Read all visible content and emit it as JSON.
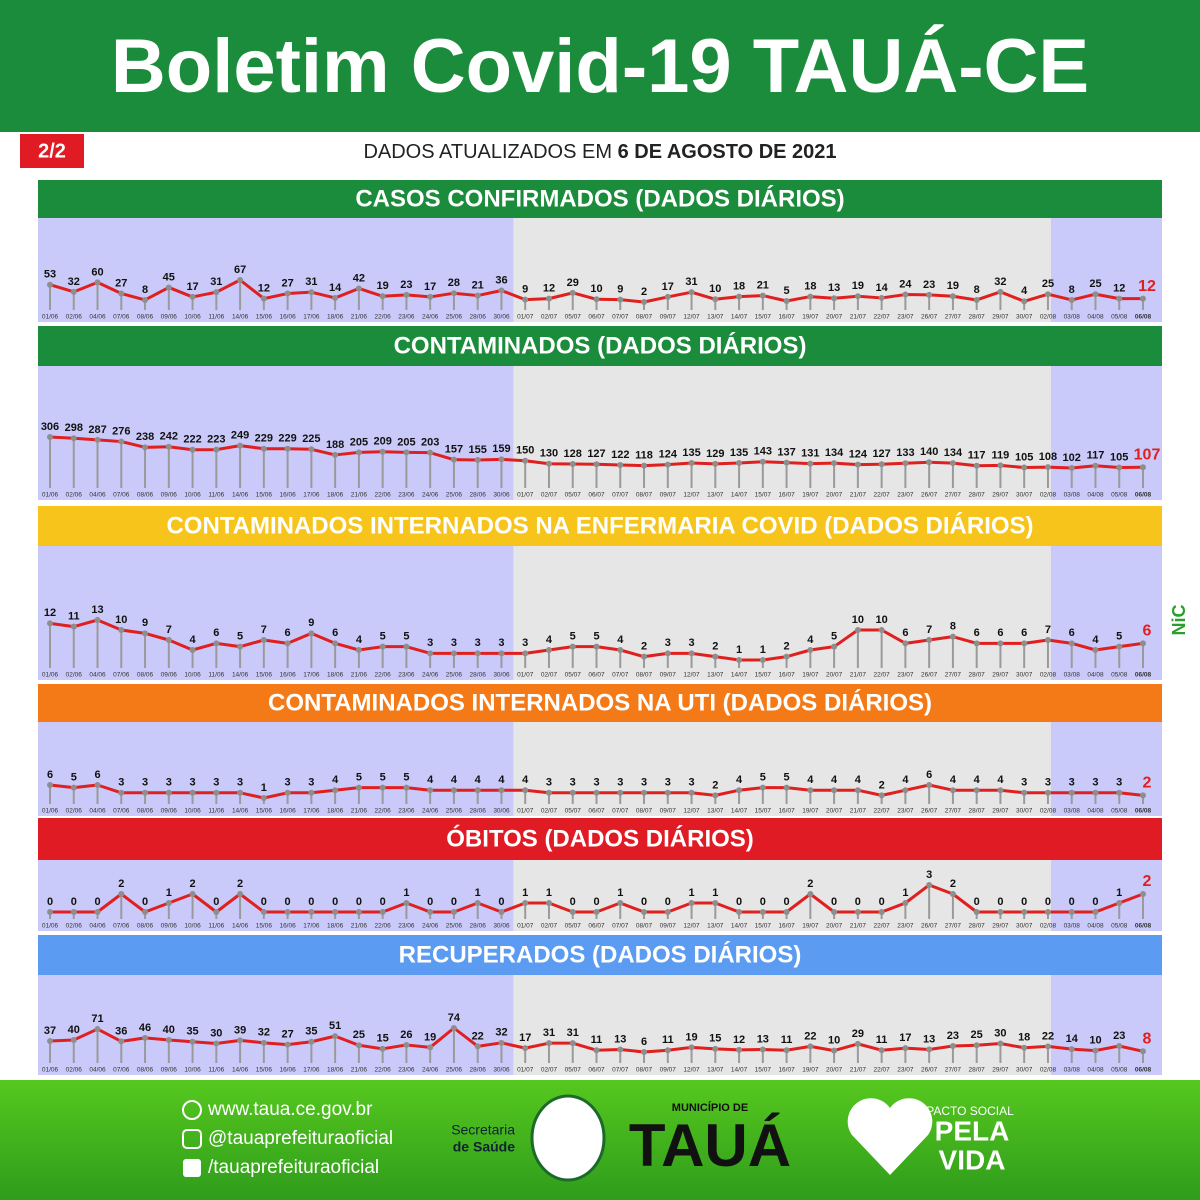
{
  "header": {
    "title": "Boletim Covid-19 TAUÁ-CE",
    "page": "2/2"
  },
  "subtitle": {
    "prefix": "DADOS ATUALIZADOS EM",
    "date": "6 DE AGOSTO DE 2021"
  },
  "chart_data": [
    {
      "type": "line",
      "title": "CASOS CONFIRMADOS (DADOS DIÁRIOS)",
      "header_color": "#1b8c3c",
      "color": "#e0201f",
      "categories": [
        "01/06",
        "02/06",
        "04/06",
        "07/06",
        "08/06",
        "09/06",
        "10/06",
        "11/06",
        "14/06",
        "15/06",
        "16/06",
        "17/06",
        "18/06",
        "21/06",
        "22/06",
        "23/06",
        "24/06",
        "25/06",
        "28/06",
        "30/06",
        "01/07",
        "02/07",
        "05/07",
        "06/07",
        "07/07",
        "08/07",
        "09/07",
        "12/07",
        "13/07",
        "14/07",
        "15/07",
        "16/07",
        "19/07",
        "20/07",
        "21/07",
        "22/07",
        "23/07",
        "26/07",
        "27/07",
        "28/07",
        "29/07",
        "30/07",
        "02/08",
        "03/08",
        "04/08",
        "05/08",
        "06/08"
      ],
      "values": [
        53,
        32,
        60,
        27,
        8,
        45,
        17,
        31,
        67,
        12,
        27,
        31,
        14,
        42,
        19,
        23,
        17,
        28,
        21,
        36,
        9,
        12,
        29,
        10,
        9,
        2,
        17,
        31,
        10,
        18,
        21,
        5,
        18,
        13,
        19,
        14,
        24,
        23,
        19,
        8,
        32,
        4,
        25,
        8,
        25,
        12,
        12
      ]
    },
    {
      "type": "line",
      "title": "CONTAMINADOS (DADOS DIÁRIOS)",
      "header_color": "#1b8c3c",
      "color": "#e0201f",
      "categories": [
        "01/06",
        "02/06",
        "04/06",
        "07/06",
        "08/06",
        "09/06",
        "10/06",
        "11/06",
        "14/06",
        "15/06",
        "16/06",
        "17/06",
        "18/06",
        "21/06",
        "22/06",
        "23/06",
        "24/06",
        "25/06",
        "28/06",
        "30/06",
        "01/07",
        "02/07",
        "05/07",
        "06/07",
        "07/07",
        "08/07",
        "09/07",
        "12/07",
        "13/07",
        "14/07",
        "15/07",
        "16/07",
        "19/07",
        "20/07",
        "21/07",
        "22/07",
        "23/07",
        "26/07",
        "27/07",
        "28/07",
        "29/07",
        "30/07",
        "02/08",
        "03/08",
        "04/08",
        "05/08",
        "06/08"
      ],
      "values": [
        306,
        298,
        287,
        276,
        238,
        242,
        222,
        223,
        249,
        229,
        229,
        225,
        188,
        205,
        209,
        205,
        203,
        157,
        155,
        159,
        150,
        130,
        128,
        127,
        122,
        118,
        124,
        135,
        129,
        135,
        143,
        137,
        131,
        134,
        124,
        127,
        133,
        140,
        134,
        117,
        119,
        105,
        108,
        102,
        117,
        105,
        107
      ]
    },
    {
      "type": "line",
      "title": "CONTAMINADOS INTERNADOS NA ENFERMARIA COVID (DADOS DIÁRIOS)",
      "header_color": "#f7c41c",
      "color": "#e0201f",
      "categories": [
        "01/06",
        "02/06",
        "04/06",
        "07/06",
        "08/06",
        "09/06",
        "10/06",
        "11/06",
        "14/06",
        "15/06",
        "16/06",
        "17/06",
        "18/06",
        "21/06",
        "22/06",
        "23/06",
        "24/06",
        "25/06",
        "28/06",
        "30/06",
        "01/07",
        "02/07",
        "05/07",
        "06/07",
        "07/07",
        "08/07",
        "09/07",
        "12/07",
        "13/07",
        "14/07",
        "15/07",
        "16/07",
        "19/07",
        "20/07",
        "21/07",
        "22/07",
        "23/07",
        "26/07",
        "27/07",
        "28/07",
        "29/07",
        "30/07",
        "02/08",
        "03/08",
        "04/08",
        "05/08",
        "06/08"
      ],
      "values": [
        12,
        11,
        13,
        10,
        9,
        7,
        4,
        6,
        5,
        7,
        6,
        9,
        6,
        4,
        5,
        5,
        3,
        3,
        3,
        3,
        3,
        4,
        5,
        5,
        4,
        2,
        3,
        3,
        2,
        1,
        1,
        2,
        4,
        5,
        10,
        10,
        6,
        7,
        8,
        6,
        6,
        6,
        7,
        6,
        4,
        5,
        6
      ]
    },
    {
      "type": "line",
      "title": "CONTAMINADOS INTERNADOS NA UTI (DADOS DIÁRIOS)",
      "header_color": "#f47a18",
      "color": "#e0201f",
      "categories": [
        "01/06",
        "02/06",
        "04/06",
        "07/06",
        "08/06",
        "09/06",
        "10/06",
        "11/06",
        "14/06",
        "15/06",
        "16/06",
        "17/06",
        "18/06",
        "21/06",
        "22/06",
        "23/06",
        "24/06",
        "25/06",
        "28/06",
        "30/06",
        "01/07",
        "02/07",
        "05/07",
        "06/07",
        "07/07",
        "08/07",
        "09/07",
        "12/07",
        "13/07",
        "14/07",
        "15/07",
        "16/07",
        "19/07",
        "20/07",
        "21/07",
        "22/07",
        "23/07",
        "26/07",
        "27/07",
        "28/07",
        "29/07",
        "30/07",
        "02/08",
        "03/08",
        "04/08",
        "05/08",
        "06/08"
      ],
      "values": [
        6,
        5,
        6,
        3,
        3,
        3,
        3,
        3,
        3,
        1,
        3,
        3,
        4,
        5,
        5,
        5,
        4,
        4,
        4,
        4,
        4,
        3,
        3,
        3,
        3,
        3,
        3,
        3,
        2,
        4,
        5,
        5,
        4,
        4,
        4,
        2,
        4,
        6,
        4,
        4,
        4,
        3,
        3,
        3,
        3,
        3,
        2
      ]
    },
    {
      "type": "line",
      "title": "ÓBITOS (DADOS DIÁRIOS)",
      "header_color": "#e01b24",
      "color": "#e0201f",
      "categories": [
        "01/06",
        "02/06",
        "04/06",
        "07/06",
        "08/06",
        "09/06",
        "10/06",
        "11/06",
        "14/06",
        "15/06",
        "16/06",
        "17/06",
        "18/06",
        "21/06",
        "22/06",
        "23/06",
        "24/06",
        "25/06",
        "28/06",
        "30/06",
        "01/07",
        "02/07",
        "05/07",
        "06/07",
        "07/07",
        "08/07",
        "09/07",
        "12/07",
        "13/07",
        "14/07",
        "15/07",
        "16/07",
        "19/07",
        "20/07",
        "21/07",
        "22/07",
        "23/07",
        "26/07",
        "27/07",
        "28/07",
        "29/07",
        "30/07",
        "02/08",
        "03/08",
        "04/08",
        "05/08",
        "06/08"
      ],
      "values": [
        0,
        0,
        0,
        2,
        0,
        1,
        2,
        0,
        2,
        0,
        0,
        0,
        0,
        0,
        0,
        1,
        0,
        0,
        1,
        0,
        1,
        1,
        0,
        0,
        1,
        0,
        0,
        1,
        1,
        0,
        0,
        0,
        2,
        0,
        0,
        0,
        1,
        3,
        2,
        0,
        0,
        0,
        0,
        0,
        0,
        1,
        2
      ]
    },
    {
      "type": "line",
      "title": "RECUPERADOS (DADOS DIÁRIOS)",
      "header_color": "#5b9cf2",
      "color": "#e0201f",
      "categories": [
        "01/06",
        "02/06",
        "04/06",
        "07/06",
        "08/06",
        "09/06",
        "10/06",
        "11/06",
        "14/06",
        "15/06",
        "16/06",
        "17/06",
        "18/06",
        "21/06",
        "22/06",
        "23/06",
        "24/06",
        "25/06",
        "28/06",
        "30/06",
        "01/07",
        "02/07",
        "05/07",
        "06/07",
        "07/07",
        "08/07",
        "09/07",
        "12/07",
        "13/07",
        "14/07",
        "15/07",
        "16/07",
        "19/07",
        "20/07",
        "21/07",
        "22/07",
        "23/07",
        "26/07",
        "27/07",
        "28/07",
        "29/07",
        "30/07",
        "02/08",
        "03/08",
        "04/08",
        "05/08",
        "06/08"
      ],
      "values": [
        37,
        40,
        71,
        36,
        46,
        40,
        35,
        30,
        39,
        32,
        27,
        35,
        51,
        25,
        15,
        26,
        19,
        74,
        22,
        32,
        17,
        31,
        31,
        11,
        13,
        6,
        11,
        19,
        15,
        12,
        13,
        11,
        22,
        10,
        29,
        11,
        17,
        13,
        23,
        25,
        30,
        18,
        22,
        14,
        10,
        23,
        8
      ]
    }
  ],
  "side_logo": "NiC",
  "footer": {
    "website": "www.taua.ce.gov.br",
    "instagram": "@tauaprefeituraoficial",
    "facebook": "/tauaprefeituraoficial",
    "secretaria": "Secretaria",
    "saude": "de Saúde",
    "municipio": "MUNICÍPIO DE",
    "city": "TAUÁ",
    "pacto": "PACTO SOCIAL",
    "pela": "PELA",
    "vida": "VIDA"
  }
}
